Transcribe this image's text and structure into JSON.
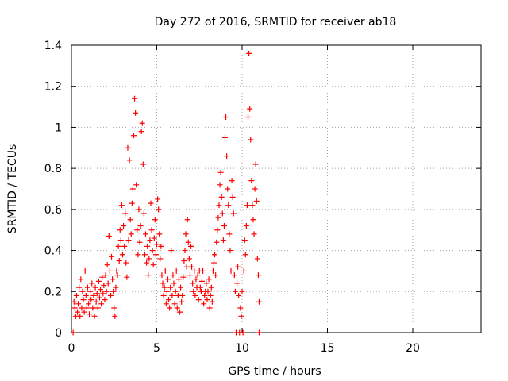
{
  "chart_data": {
    "type": "scatter",
    "title": "Day 272 of 2016, SRMTID for receiver ab18",
    "xlabel": "GPS time / hours",
    "ylabel": "SRMTID / TECUs",
    "xlim": [
      0,
      24
    ],
    "ylim": [
      0,
      1.4
    ],
    "xticks": [
      "0",
      "5",
      "10",
      "15",
      "20"
    ],
    "yticks": [
      "0",
      "0.2",
      "0.4",
      "0.6",
      "0.8",
      "1",
      "1.2",
      "1.4"
    ],
    "grid": true,
    "marker": "+",
    "color": "#ff0000",
    "points": [
      [
        0.1,
        0.0
      ],
      [
        0.15,
        0.15
      ],
      [
        0.2,
        0.12
      ],
      [
        0.25,
        0.08
      ],
      [
        0.3,
        0.18
      ],
      [
        0.35,
        0.1
      ],
      [
        0.4,
        0.14
      ],
      [
        0.45,
        0.22
      ],
      [
        0.5,
        0.08
      ],
      [
        0.55,
        0.26
      ],
      [
        0.6,
        0.12
      ],
      [
        0.65,
        0.2
      ],
      [
        0.7,
        0.16
      ],
      [
        0.75,
        0.1
      ],
      [
        0.8,
        0.3
      ],
      [
        0.85,
        0.18
      ],
      [
        0.9,
        0.12
      ],
      [
        0.95,
        0.22
      ],
      [
        1.0,
        0.14
      ],
      [
        1.05,
        0.09
      ],
      [
        1.1,
        0.2
      ],
      [
        1.15,
        0.16
      ],
      [
        1.2,
        0.24
      ],
      [
        1.25,
        0.12
      ],
      [
        1.3,
        0.18
      ],
      [
        1.35,
        0.08
      ],
      [
        1.4,
        0.22
      ],
      [
        1.45,
        0.15
      ],
      [
        1.5,
        0.19
      ],
      [
        1.55,
        0.12
      ],
      [
        1.6,
        0.25
      ],
      [
        1.65,
        0.17
      ],
      [
        1.7,
        0.21
      ],
      [
        1.75,
        0.14
      ],
      [
        1.8,
        0.27
      ],
      [
        1.85,
        0.19
      ],
      [
        1.9,
        0.23
      ],
      [
        1.95,
        0.16
      ],
      [
        2.0,
        0.28
      ],
      [
        2.05,
        0.2
      ],
      [
        2.1,
        0.33
      ],
      [
        2.15,
        0.24
      ],
      [
        2.2,
        0.47
      ],
      [
        2.25,
        0.3
      ],
      [
        2.3,
        0.18
      ],
      [
        2.35,
        0.37
      ],
      [
        2.4,
        0.26
      ],
      [
        2.45,
        0.2
      ],
      [
        2.5,
        0.12
      ],
      [
        2.55,
        0.08
      ],
      [
        2.6,
        0.22
      ],
      [
        2.65,
        0.3
      ],
      [
        2.7,
        0.28
      ],
      [
        2.75,
        0.42
      ],
      [
        2.8,
        0.35
      ],
      [
        2.85,
        0.5
      ],
      [
        2.9,
        0.45
      ],
      [
        2.95,
        0.62
      ],
      [
        3.0,
        0.38
      ],
      [
        3.05,
        0.52
      ],
      [
        3.1,
        0.42
      ],
      [
        3.15,
        0.58
      ],
      [
        3.2,
        0.34
      ],
      [
        3.25,
        0.27
      ],
      [
        3.3,
        0.9
      ],
      [
        3.35,
        0.45
      ],
      [
        3.4,
        0.84
      ],
      [
        3.45,
        0.55
      ],
      [
        3.5,
        0.48
      ],
      [
        3.55,
        0.63
      ],
      [
        3.6,
        0.7
      ],
      [
        3.65,
        0.96
      ],
      [
        3.7,
        1.14
      ],
      [
        3.75,
        1.07
      ],
      [
        3.8,
        0.72
      ],
      [
        3.85,
        0.5
      ],
      [
        3.9,
        0.38
      ],
      [
        3.95,
        0.6
      ],
      [
        4.0,
        0.44
      ],
      [
        4.05,
        0.52
      ],
      [
        4.1,
        0.98
      ],
      [
        4.15,
        1.02
      ],
      [
        4.2,
        0.82
      ],
      [
        4.25,
        0.58
      ],
      [
        4.3,
        0.38
      ],
      [
        4.35,
        0.48
      ],
      [
        4.4,
        0.34
      ],
      [
        4.45,
        0.42
      ],
      [
        4.5,
        0.28
      ],
      [
        4.55,
        0.36
      ],
      [
        4.6,
        0.45
      ],
      [
        4.65,
        0.63
      ],
      [
        4.7,
        0.5
      ],
      [
        4.75,
        0.4
      ],
      [
        4.8,
        0.33
      ],
      [
        4.85,
        0.46
      ],
      [
        4.9,
        0.55
      ],
      [
        4.95,
        0.38
      ],
      [
        5.0,
        0.43
      ],
      [
        5.05,
        0.65
      ],
      [
        5.1,
        0.6
      ],
      [
        5.15,
        0.48
      ],
      [
        5.2,
        0.36
      ],
      [
        5.25,
        0.42
      ],
      [
        5.3,
        0.28
      ],
      [
        5.35,
        0.24
      ],
      [
        5.4,
        0.18
      ],
      [
        5.45,
        0.22
      ],
      [
        5.5,
        0.3
      ],
      [
        5.55,
        0.14
      ],
      [
        5.6,
        0.2
      ],
      [
        5.65,
        0.26
      ],
      [
        5.7,
        0.16
      ],
      [
        5.75,
        0.12
      ],
      [
        5.8,
        0.22
      ],
      [
        5.85,
        0.4
      ],
      [
        5.9,
        0.18
      ],
      [
        5.95,
        0.28
      ],
      [
        6.0,
        0.24
      ],
      [
        6.05,
        0.14
      ],
      [
        6.1,
        0.2
      ],
      [
        6.15,
        0.3
      ],
      [
        6.2,
        0.12
      ],
      [
        6.25,
        0.18
      ],
      [
        6.3,
        0.26
      ],
      [
        6.35,
        0.1
      ],
      [
        6.4,
        0.22
      ],
      [
        6.45,
        0.15
      ],
      [
        6.5,
        0.18
      ],
      [
        6.55,
        0.27
      ],
      [
        6.6,
        0.35
      ],
      [
        6.65,
        0.4
      ],
      [
        6.7,
        0.48
      ],
      [
        6.75,
        0.32
      ],
      [
        6.8,
        0.55
      ],
      [
        6.85,
        0.44
      ],
      [
        6.9,
        0.36
      ],
      [
        6.95,
        0.28
      ],
      [
        7.0,
        0.42
      ],
      [
        7.05,
        0.32
      ],
      [
        7.1,
        0.24
      ],
      [
        7.15,
        0.2
      ],
      [
        7.2,
        0.3
      ],
      [
        7.25,
        0.18
      ],
      [
        7.3,
        0.26
      ],
      [
        7.35,
        0.22
      ],
      [
        7.4,
        0.28
      ],
      [
        7.45,
        0.16
      ],
      [
        7.5,
        0.3
      ],
      [
        7.55,
        0.22
      ],
      [
        7.6,
        0.2
      ],
      [
        7.65,
        0.25
      ],
      [
        7.7,
        0.3
      ],
      [
        7.75,
        0.14
      ],
      [
        7.8,
        0.18
      ],
      [
        7.85,
        0.2
      ],
      [
        7.9,
        0.24
      ],
      [
        7.95,
        0.16
      ],
      [
        8.0,
        0.2
      ],
      [
        8.05,
        0.26
      ],
      [
        8.1,
        0.12
      ],
      [
        8.15,
        0.18
      ],
      [
        8.2,
        0.22
      ],
      [
        8.25,
        0.15
      ],
      [
        8.3,
        0.3
      ],
      [
        8.35,
        0.34
      ],
      [
        8.4,
        0.38
      ],
      [
        8.45,
        0.28
      ],
      [
        8.5,
        0.44
      ],
      [
        8.55,
        0.5
      ],
      [
        8.6,
        0.56
      ],
      [
        8.65,
        0.62
      ],
      [
        8.7,
        0.72
      ],
      [
        8.75,
        0.78
      ],
      [
        8.8,
        0.66
      ],
      [
        8.85,
        0.58
      ],
      [
        8.9,
        0.45
      ],
      [
        8.95,
        0.52
      ],
      [
        9.0,
        0.95
      ],
      [
        9.05,
        1.05
      ],
      [
        9.1,
        0.86
      ],
      [
        9.15,
        0.7
      ],
      [
        9.2,
        0.62
      ],
      [
        9.25,
        0.48
      ],
      [
        9.3,
        0.4
      ],
      [
        9.35,
        0.3
      ],
      [
        9.4,
        0.74
      ],
      [
        9.45,
        0.66
      ],
      [
        9.5,
        0.58
      ],
      [
        9.55,
        0.28
      ],
      [
        9.6,
        0.2
      ],
      [
        9.65,
        0.0
      ],
      [
        9.7,
        0.24
      ],
      [
        9.75,
        0.32
      ],
      [
        9.8,
        0.18
      ],
      [
        9.85,
        0.0
      ],
      [
        9.9,
        0.12
      ],
      [
        9.95,
        0.08
      ],
      [
        10.0,
        0.2
      ],
      [
        10.05,
        0.0
      ],
      [
        10.1,
        0.3
      ],
      [
        10.15,
        0.45
      ],
      [
        10.2,
        0.38
      ],
      [
        10.25,
        0.52
      ],
      [
        10.3,
        0.62
      ],
      [
        10.35,
        1.05
      ],
      [
        10.4,
        1.36
      ],
      [
        10.45,
        1.09
      ],
      [
        10.5,
        0.94
      ],
      [
        10.55,
        0.74
      ],
      [
        10.6,
        0.62
      ],
      [
        10.65,
        0.55
      ],
      [
        10.7,
        0.48
      ],
      [
        10.75,
        0.7
      ],
      [
        10.8,
        0.82
      ],
      [
        10.85,
        0.64
      ],
      [
        10.9,
        0.36
      ],
      [
        10.95,
        0.28
      ],
      [
        11.0,
        0.15
      ],
      [
        11.0,
        0.0
      ]
    ]
  }
}
